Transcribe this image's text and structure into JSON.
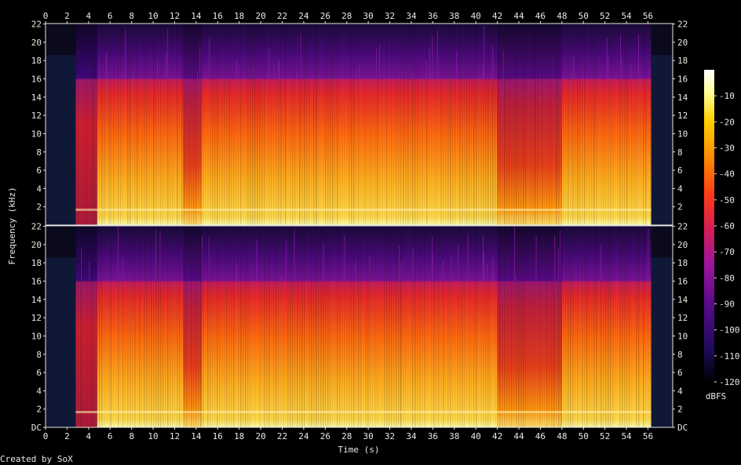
{
  "chart_data": {
    "type": "heatmap",
    "title": "",
    "xlabel": "Time (s)",
    "ylabel": "Frequency (kHz)",
    "xlim": [
      0,
      58.3
    ],
    "ylim": [
      0,
      22.05
    ],
    "x_ticks": [
      "0",
      "2",
      "4",
      "6",
      "8",
      "10",
      "12",
      "14",
      "16",
      "18",
      "20",
      "22",
      "24",
      "26",
      "28",
      "30",
      "32",
      "34",
      "36",
      "38",
      "40",
      "42",
      "44",
      "46",
      "48",
      "50",
      "52",
      "54",
      "56"
    ],
    "y_ticks_top": [
      "2",
      "4",
      "6",
      "8",
      "10",
      "12",
      "14",
      "16",
      "18",
      "20",
      "22"
    ],
    "y_ticks_bottom": [
      "DC",
      "2",
      "4",
      "6",
      "8",
      "10",
      "12",
      "14",
      "16",
      "18",
      "20",
      "22"
    ],
    "channels": 2,
    "colorbar": {
      "label": "dBFS",
      "ticks": [
        "-10",
        "-20",
        "-30",
        "-40",
        "-50",
        "-60",
        "-70",
        "-80",
        "-90",
        "-100",
        "-110",
        "-120"
      ],
      "range": [
        -120,
        0
      ],
      "colors": [
        "#000000",
        "#1c0a5a",
        "#5a0a8c",
        "#a0149c",
        "#dc1e50",
        "#ff3c14",
        "#ff8c00",
        "#ffd200",
        "#ffff9a",
        "#ffffff"
      ]
    },
    "signal_segments": [
      {
        "start": 2.8,
        "end": 4.8,
        "level": "quiet",
        "cutoff_khz": 16
      },
      {
        "start": 4.8,
        "end": 6.0,
        "level": "loud",
        "cutoff_khz": 16
      },
      {
        "start": 6.0,
        "end": 12.8,
        "level": "loud",
        "cutoff_khz": 16
      },
      {
        "start": 12.8,
        "end": 14.5,
        "level": "medium",
        "cutoff_khz": 16
      },
      {
        "start": 14.5,
        "end": 25.2,
        "level": "loud",
        "cutoff_khz": 16
      },
      {
        "start": 25.2,
        "end": 33.0,
        "level": "loud",
        "cutoff_khz": 16
      },
      {
        "start": 33.0,
        "end": 42.0,
        "level": "loud",
        "cutoff_khz": 16
      },
      {
        "start": 42.0,
        "end": 48.0,
        "level": "medium",
        "cutoff_khz": 16
      },
      {
        "start": 48.0,
        "end": 56.3,
        "level": "loud",
        "cutoff_khz": 16
      }
    ],
    "silence_regions": [
      {
        "start": 0.0,
        "end": 2.8
      },
      {
        "start": 56.3,
        "end": 58.3
      }
    ],
    "footer": "Created by SoX"
  }
}
